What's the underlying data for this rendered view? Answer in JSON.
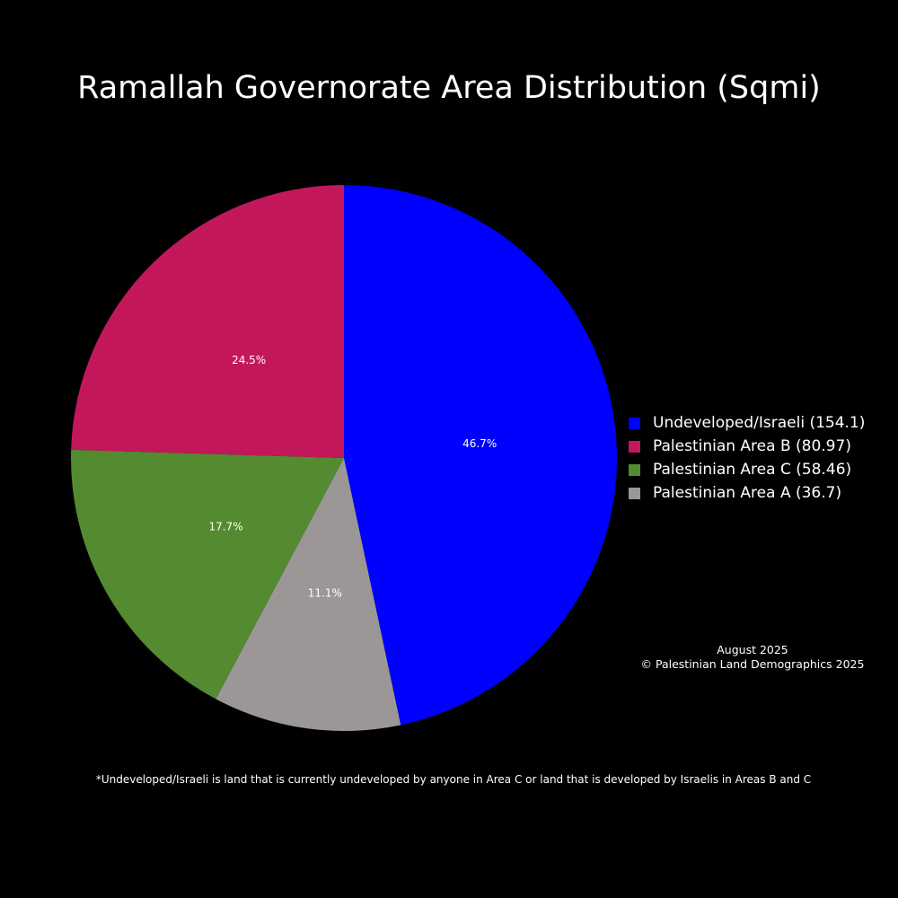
{
  "chart_data": {
    "type": "pie",
    "title": "Ramallah Governorate Area Distribution (Sqmi)",
    "slices": [
      {
        "label": "Undeveloped/Israeli",
        "legend": "Undeveloped/Israeli (154.1)",
        "value": 154.1,
        "percent_label": "46.7%",
        "color": "#0000ff"
      },
      {
        "label": "Palestinian Area A",
        "legend": "Palestinian Area A (36.7)",
        "value": 36.7,
        "percent_label": "11.1%",
        "color": "#9c9797"
      },
      {
        "label": "Palestinian Area C",
        "legend": "Palestinian Area C (58.46)",
        "value": 58.46,
        "percent_label": "17.7%",
        "color": "#548b30"
      },
      {
        "label": "Palestinian Area B",
        "legend": "Palestinian Area B (80.97)",
        "value": 80.97,
        "percent_label": "24.5%",
        "color": "#c2185b"
      }
    ],
    "legend_order": [
      0,
      3,
      2,
      1
    ],
    "legend_position": "right",
    "direction": "clockwise",
    "start": "top",
    "annotation_lines": [
      "August 2025",
      "© Palestinian Land Demographics 2025"
    ],
    "footnote": "*Undeveloped/Israeli is land that is currently undeveloped by anyone in Area C or land that is developed by Israelis in Areas B and C"
  }
}
